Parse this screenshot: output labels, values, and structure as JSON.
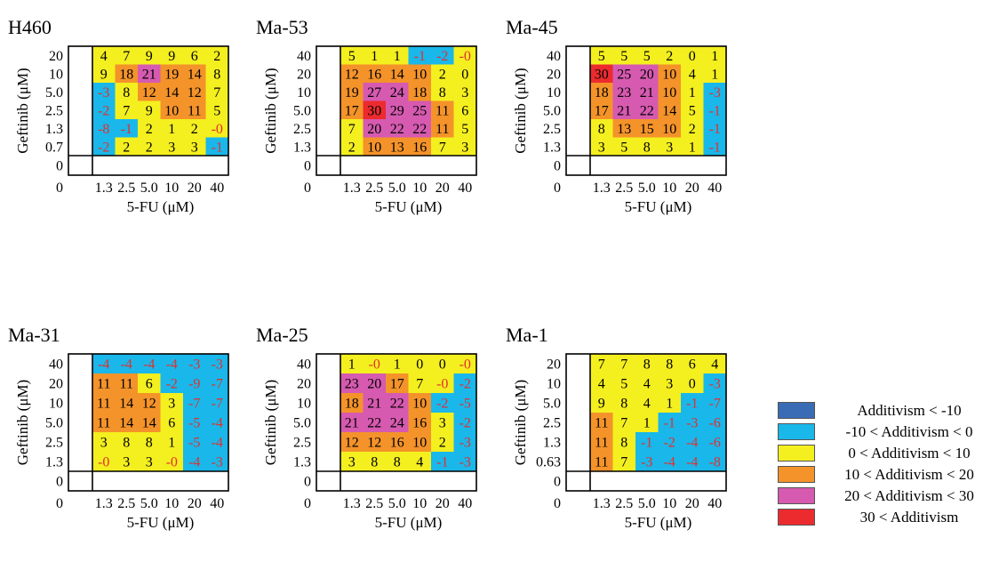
{
  "colors": {
    "lt_neg10": "#3a6cb5",
    "neg10_0": "#1ab7ea",
    "0_10": "#f4ef1f",
    "10_20": "#f4932a",
    "20_30": "#d65ab0",
    "gt_30": "#ec2b2e",
    "negative_text": "#e0302f",
    "positive_text": "#000000"
  },
  "legend": [
    {
      "label": "Additivism < -10",
      "color": "#3a6cb5"
    },
    {
      "label": "-10 < Additivism <  0",
      "color": "#1ab7ea"
    },
    {
      "label": "0  < Additivism < 10",
      "color": "#f4ef1f"
    },
    {
      "label": "10 < Additivism < 20",
      "color": "#f4932a"
    },
    {
      "label": "20 < Additivism < 30",
      "color": "#d65ab0"
    },
    {
      "label": "30 < Additivism",
      "color": "#ec2b2e"
    }
  ],
  "chart_data": [
    {
      "type": "heatmap",
      "title": "H460",
      "xlabel": "5-FU (μM)",
      "ylabel": "Geftinib (μM)",
      "x_ticks": [
        "0",
        "1.3",
        "2.5",
        "5.0",
        "10",
        "20",
        "40"
      ],
      "y_ticks": [
        "20",
        "10",
        "5.0",
        "2.5",
        "1.3",
        "0.7",
        "0"
      ],
      "values": [
        [
          4,
          7,
          9,
          9,
          6,
          2
        ],
        [
          9,
          18,
          21,
          19,
          14,
          8
        ],
        [
          -3,
          8,
          12,
          14,
          12,
          7
        ],
        [
          -2,
          7,
          9,
          10,
          11,
          5
        ],
        [
          -8,
          -1,
          2,
          1,
          2,
          0
        ],
        [
          -2,
          2,
          2,
          3,
          3,
          -1
        ]
      ],
      "labels": [
        [
          "4",
          "7",
          "9",
          "9",
          "6",
          "2"
        ],
        [
          "9",
          "18",
          "21",
          "19",
          "14",
          "8"
        ],
        [
          "-3",
          "8",
          "12",
          "14",
          "12",
          "7"
        ],
        [
          "-2",
          "7",
          "9",
          "10",
          "11",
          "5"
        ],
        [
          "-8",
          "-1",
          "2",
          "1",
          "2",
          "-0"
        ],
        [
          "-2",
          "2",
          "2",
          "3",
          "3",
          "-1"
        ]
      ]
    },
    {
      "type": "heatmap",
      "title": "Ma-53",
      "xlabel": "5-FU (μM)",
      "ylabel": "Geftinib (μM)",
      "x_ticks": [
        "0",
        "1.3",
        "2.5",
        "5.0",
        "10",
        "20",
        "40"
      ],
      "y_ticks": [
        "40",
        "20",
        "10",
        "5.0",
        "2.5",
        "1.3",
        "0"
      ],
      "values": [
        [
          5,
          1,
          1,
          -1,
          -2,
          0
        ],
        [
          12,
          16,
          14,
          10,
          2,
          0
        ],
        [
          19,
          27,
          24,
          18,
          8,
          3
        ],
        [
          17,
          30,
          29,
          25,
          11,
          6
        ],
        [
          7,
          20,
          22,
          22,
          11,
          5
        ],
        [
          2,
          10,
          13,
          16,
          7,
          3
        ]
      ],
      "labels": [
        [
          "5",
          "1",
          "1",
          "-1",
          "-2",
          "-0"
        ],
        [
          "12",
          "16",
          "14",
          "10",
          "2",
          "0"
        ],
        [
          "19",
          "27",
          "24",
          "18",
          "8",
          "3"
        ],
        [
          "17",
          "30",
          "29",
          "25",
          "11",
          "6"
        ],
        [
          "7",
          "20",
          "22",
          "22",
          "11",
          "5"
        ],
        [
          "2",
          "10",
          "13",
          "16",
          "7",
          "3"
        ]
      ]
    },
    {
      "type": "heatmap",
      "title": "Ma-45",
      "xlabel": "5-FU (μM)",
      "ylabel": "Geftinib (μM)",
      "x_ticks": [
        "0",
        "1.3",
        "2.5",
        "5.0",
        "10",
        "20",
        "40"
      ],
      "y_ticks": [
        "40",
        "20",
        "10",
        "5.0",
        "2.5",
        "1.3",
        "0"
      ],
      "values": [
        [
          5,
          5,
          5,
          2,
          0,
          1
        ],
        [
          30,
          25,
          20,
          10,
          4,
          1
        ],
        [
          18,
          23,
          21,
          10,
          1,
          -3
        ],
        [
          17,
          21,
          22,
          14,
          5,
          -1
        ],
        [
          8,
          13,
          15,
          10,
          2,
          -1
        ],
        [
          3,
          5,
          8,
          3,
          1,
          -1
        ]
      ],
      "labels": [
        [
          "5",
          "5",
          "5",
          "2",
          "0",
          "1"
        ],
        [
          "30",
          "25",
          "20",
          "10",
          "4",
          "1"
        ],
        [
          "18",
          "23",
          "21",
          "10",
          "1",
          "-3"
        ],
        [
          "17",
          "21",
          "22",
          "14",
          "5",
          "-1"
        ],
        [
          "8",
          "13",
          "15",
          "10",
          "2",
          "-1"
        ],
        [
          "3",
          "5",
          "8",
          "3",
          "1",
          "-1"
        ]
      ]
    },
    {
      "type": "heatmap",
      "title": "Ma-31",
      "xlabel": "5-FU (μM)",
      "ylabel": "Geftinib (μM)",
      "x_ticks": [
        "0",
        "1.3",
        "2.5",
        "5.0",
        "10",
        "20",
        "40"
      ],
      "y_ticks": [
        "40",
        "20",
        "10",
        "5.0",
        "2.5",
        "1.3",
        "0"
      ],
      "values": [
        [
          -4,
          -4,
          -4,
          -4,
          -3,
          -3
        ],
        [
          11,
          11,
          6,
          -2,
          -9,
          -7
        ],
        [
          11,
          14,
          12,
          3,
          -7,
          -7
        ],
        [
          11,
          14,
          14,
          6,
          -5,
          -4
        ],
        [
          3,
          8,
          8,
          1,
          -5,
          -4
        ],
        [
          0,
          3,
          3,
          0,
          -4,
          -3
        ]
      ],
      "labels": [
        [
          "-4",
          "-4",
          "-4",
          "-4",
          "-3",
          "-3"
        ],
        [
          "11",
          "11",
          "6",
          "-2",
          "-9",
          "-7"
        ],
        [
          "11",
          "14",
          "12",
          "3",
          "-7",
          "-7"
        ],
        [
          "11",
          "14",
          "14",
          "6",
          "-5",
          "-4"
        ],
        [
          "3",
          "8",
          "8",
          "1",
          "-5",
          "-4"
        ],
        [
          "-0",
          "3",
          "3",
          "-0",
          "-4",
          "-3"
        ]
      ]
    },
    {
      "type": "heatmap",
      "title": "Ma-25",
      "xlabel": "5-FU (μM)",
      "ylabel": "Geftinib (μM)",
      "x_ticks": [
        "0",
        "1.3",
        "2.5",
        "5.0",
        "10",
        "20",
        "40"
      ],
      "y_ticks": [
        "40",
        "20",
        "10",
        "5.0",
        "2.5",
        "1.3",
        "0"
      ],
      "values": [
        [
          1,
          0,
          1,
          0,
          0,
          0
        ],
        [
          23,
          20,
          17,
          7,
          0,
          -2
        ],
        [
          18,
          21,
          22,
          10,
          -2,
          -5
        ],
        [
          21,
          22,
          24,
          16,
          3,
          -2
        ],
        [
          12,
          12,
          16,
          10,
          2,
          -3
        ],
        [
          3,
          8,
          8,
          4,
          -1,
          -3
        ]
      ],
      "labels": [
        [
          "1",
          "-0",
          "1",
          "0",
          "0",
          "-0"
        ],
        [
          "23",
          "20",
          "17",
          "7",
          "-0",
          "-2"
        ],
        [
          "18",
          "21",
          "22",
          "10",
          "-2",
          "-5"
        ],
        [
          "21",
          "22",
          "24",
          "16",
          "3",
          "-2"
        ],
        [
          "12",
          "12",
          "16",
          "10",
          "2",
          "-3"
        ],
        [
          "3",
          "8",
          "8",
          "4",
          "-1",
          "-3"
        ]
      ]
    },
    {
      "type": "heatmap",
      "title": "Ma-1",
      "xlabel": "5-FU (μM)",
      "ylabel": "Geftinib (μM)",
      "x_ticks": [
        "0",
        "1.3",
        "2.5",
        "5.0",
        "10",
        "20",
        "40"
      ],
      "y_ticks": [
        "20",
        "10",
        "5.0",
        "2.5",
        "1.3",
        "0.63",
        "0"
      ],
      "values": [
        [
          7,
          7,
          8,
          8,
          6,
          4
        ],
        [
          4,
          5,
          4,
          3,
          0,
          -3
        ],
        [
          9,
          8,
          4,
          1,
          -1,
          -7
        ],
        [
          11,
          7,
          1,
          -1,
          -3,
          -6
        ],
        [
          11,
          8,
          -1,
          -2,
          -4,
          -6
        ],
        [
          11,
          7,
          -3,
          -4,
          -4,
          -8
        ]
      ],
      "labels": [
        [
          "7",
          "7",
          "8",
          "8",
          "6",
          "4"
        ],
        [
          "4",
          "5",
          "4",
          "3",
          "0",
          "-3"
        ],
        [
          "9",
          "8",
          "4",
          "1",
          "-1",
          "-7"
        ],
        [
          "11",
          "7",
          "1",
          "-1",
          "-3",
          "-6"
        ],
        [
          "11",
          "8",
          "-1",
          "-2",
          "-4",
          "-6"
        ],
        [
          "11",
          "7",
          "-3",
          "-4",
          "-4",
          "-8"
        ]
      ]
    }
  ]
}
